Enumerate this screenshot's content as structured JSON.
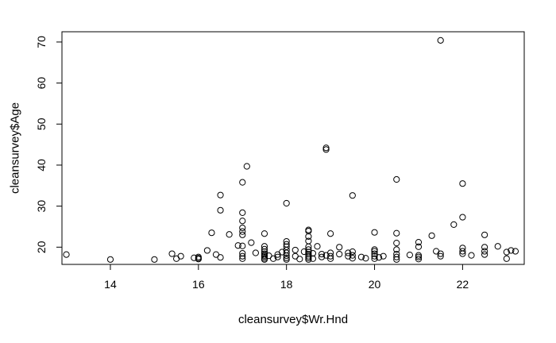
{
  "chart_data": {
    "type": "scatter",
    "xlabel": "cleansurvey$Wr.Hnd",
    "ylabel": "cleansurvey$Age",
    "xlim": [
      12.9,
      23.4
    ],
    "ylim": [
      15.8,
      72.5
    ],
    "x_ticks": [
      14,
      16,
      18,
      20,
      22
    ],
    "y_ticks": [
      20,
      30,
      40,
      50,
      60,
      70
    ],
    "x_tick_labels": [
      "14",
      "16",
      "18",
      "20",
      "22"
    ],
    "y_tick_labels": [
      "20",
      "30",
      "40",
      "50",
      "60",
      "70"
    ],
    "marker": "open-circle",
    "grid": false,
    "points": [
      [
        13.0,
        18.2
      ],
      [
        14.0,
        17.0
      ],
      [
        15.0,
        17.0
      ],
      [
        15.4,
        18.4
      ],
      [
        15.5,
        17.2
      ],
      [
        15.6,
        17.8
      ],
      [
        15.9,
        17.4
      ],
      [
        16.0,
        17.1
      ],
      [
        16.0,
        17.6
      ],
      [
        16.0,
        17.3
      ],
      [
        16.2,
        19.2
      ],
      [
        16.3,
        23.5
      ],
      [
        16.4,
        18.2
      ],
      [
        16.5,
        17.5
      ],
      [
        16.5,
        29.0
      ],
      [
        16.5,
        32.7
      ],
      [
        16.7,
        23.1
      ],
      [
        16.9,
        20.4
      ],
      [
        17.0,
        17.2
      ],
      [
        17.0,
        17.8
      ],
      [
        17.0,
        18.5
      ],
      [
        17.0,
        20.3
      ],
      [
        17.0,
        23.0
      ],
      [
        17.0,
        23.8
      ],
      [
        17.0,
        24.7
      ],
      [
        17.0,
        26.4
      ],
      [
        17.0,
        28.4
      ],
      [
        17.0,
        35.8
      ],
      [
        17.1,
        39.7
      ],
      [
        17.2,
        21.1
      ],
      [
        17.3,
        18.6
      ],
      [
        17.5,
        17.0
      ],
      [
        17.5,
        17.3
      ],
      [
        17.5,
        17.7
      ],
      [
        17.5,
        18.0
      ],
      [
        17.5,
        18.4
      ],
      [
        17.5,
        18.9
      ],
      [
        17.5,
        19.5
      ],
      [
        17.5,
        20.2
      ],
      [
        17.5,
        23.3
      ],
      [
        17.6,
        17.9
      ],
      [
        17.7,
        17.2
      ],
      [
        17.8,
        18.2
      ],
      [
        17.8,
        17.6
      ],
      [
        17.9,
        18.8
      ],
      [
        18.0,
        17.0
      ],
      [
        18.0,
        17.4
      ],
      [
        18.0,
        17.9
      ],
      [
        18.0,
        18.6
      ],
      [
        18.0,
        19.3
      ],
      [
        18.0,
        20.1
      ],
      [
        18.0,
        20.7
      ],
      [
        18.0,
        21.4
      ],
      [
        18.0,
        30.7
      ],
      [
        18.2,
        17.8
      ],
      [
        18.2,
        19.3
      ],
      [
        18.3,
        17.1
      ],
      [
        18.4,
        18.9
      ],
      [
        18.5,
        17.0
      ],
      [
        18.5,
        17.4
      ],
      [
        18.5,
        17.8
      ],
      [
        18.5,
        18.3
      ],
      [
        18.5,
        18.8
      ],
      [
        18.5,
        19.4
      ],
      [
        18.5,
        20.1
      ],
      [
        18.5,
        21.5
      ],
      [
        18.5,
        22.6
      ],
      [
        18.5,
        23.9
      ],
      [
        18.5,
        24.2
      ],
      [
        18.6,
        17.2
      ],
      [
        18.6,
        18.5
      ],
      [
        18.7,
        20.2
      ],
      [
        18.8,
        17.6
      ],
      [
        18.8,
        18.3
      ],
      [
        18.9,
        18.0
      ],
      [
        18.9,
        43.8
      ],
      [
        18.9,
        44.2
      ],
      [
        19.0,
        17.2
      ],
      [
        19.0,
        17.8
      ],
      [
        19.0,
        18.6
      ],
      [
        19.0,
        23.3
      ],
      [
        19.2,
        18.3
      ],
      [
        19.2,
        20.0
      ],
      [
        19.4,
        17.8
      ],
      [
        19.4,
        18.6
      ],
      [
        19.5,
        17.3
      ],
      [
        19.5,
        18.0
      ],
      [
        19.5,
        18.9
      ],
      [
        19.5,
        32.6
      ],
      [
        19.7,
        17.6
      ],
      [
        19.8,
        17.3
      ],
      [
        20.0,
        17.2
      ],
      [
        20.0,
        17.8
      ],
      [
        20.0,
        18.4
      ],
      [
        20.0,
        19.0
      ],
      [
        20.0,
        19.4
      ],
      [
        20.0,
        23.6
      ],
      [
        20.1,
        17.5
      ],
      [
        20.2,
        17.8
      ],
      [
        20.5,
        17.0
      ],
      [
        20.5,
        17.6
      ],
      [
        20.5,
        18.3
      ],
      [
        20.5,
        19.4
      ],
      [
        20.5,
        21.0
      ],
      [
        20.5,
        23.4
      ],
      [
        20.5,
        36.5
      ],
      [
        20.8,
        18.1
      ],
      [
        21.0,
        17.1
      ],
      [
        21.0,
        17.6
      ],
      [
        21.0,
        18.0
      ],
      [
        21.0,
        20.1
      ],
      [
        21.0,
        21.2
      ],
      [
        21.3,
        22.8
      ],
      [
        21.4,
        19.0
      ],
      [
        21.5,
        17.8
      ],
      [
        21.5,
        18.4
      ],
      [
        21.5,
        70.4
      ],
      [
        21.8,
        25.5
      ],
      [
        22.0,
        18.4
      ],
      [
        22.0,
        19.0
      ],
      [
        22.0,
        19.8
      ],
      [
        22.0,
        27.3
      ],
      [
        22.0,
        35.5
      ],
      [
        22.2,
        18.0
      ],
      [
        22.5,
        18.2
      ],
      [
        22.5,
        19.0
      ],
      [
        22.5,
        20.0
      ],
      [
        22.5,
        23.0
      ],
      [
        22.8,
        20.2
      ],
      [
        23.0,
        17.2
      ],
      [
        23.0,
        18.8
      ],
      [
        23.1,
        19.2
      ],
      [
        23.2,
        19.0
      ]
    ]
  }
}
